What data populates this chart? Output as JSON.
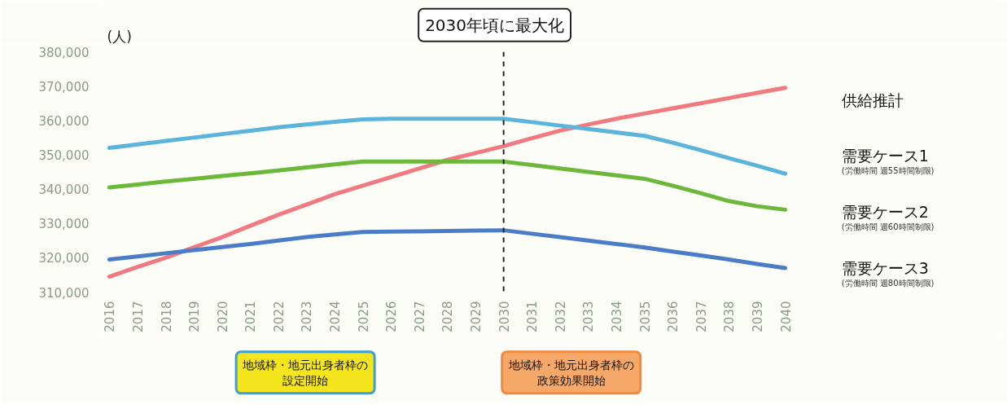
{
  "chart_data": {
    "type": "line",
    "ylabel": "(人)",
    "categories": [
      "2016",
      "2017",
      "2018",
      "2019",
      "2020",
      "2021",
      "2022",
      "2023",
      "2024",
      "2025",
      "2026",
      "2027",
      "2028",
      "2029",
      "2030",
      "2031",
      "2032",
      "2033",
      "2034",
      "2035",
      "2036",
      "2037",
      "2038",
      "2039",
      "2040"
    ],
    "series": [
      {
        "name": "供給推計",
        "color": "#f07a80",
        "values": [
          314500,
          317300,
          320000,
          323000,
          326000,
          329300,
          332500,
          335500,
          338500,
          341000,
          343500,
          346000,
          348500,
          350500,
          352500,
          354800,
          357000,
          358800,
          360500,
          362000,
          363500,
          365000,
          366500,
          368000,
          369500
        ]
      },
      {
        "name": "需要ケース1\n(労働時間 週55時間制限)",
        "color": "#5ab4dc",
        "values": [
          352000,
          353000,
          354000,
          355000,
          356000,
          357000,
          358000,
          358800,
          359600,
          360300,
          360500,
          360500,
          360500,
          360500,
          360500,
          359500,
          358500,
          357500,
          356500,
          355500,
          353500,
          351300,
          349000,
          346800,
          344500
        ]
      },
      {
        "name": "需要ケース2\n(労働時間 週60時間制限)",
        "color": "#6cb83a",
        "values": [
          340500,
          341300,
          342200,
          343000,
          343800,
          344600,
          345400,
          346300,
          347200,
          348000,
          348000,
          348000,
          348000,
          348000,
          348000,
          347000,
          346000,
          345000,
          344000,
          343000,
          341000,
          338800,
          336500,
          335000,
          334000
        ]
      },
      {
        "name": "需要ケース3\n(労働時間 週80時間制限)",
        "color": "#4a7cc8",
        "values": [
          319500,
          320400,
          321300,
          322200,
          323100,
          324000,
          325000,
          326000,
          326800,
          327500,
          327600,
          327700,
          327800,
          327900,
          328000,
          327000,
          326000,
          325000,
          324000,
          323000,
          321800,
          320700,
          319500,
          318200,
          317000
        ]
      }
    ],
    "ylim": [
      310000,
      380000
    ],
    "yticks": [
      {
        "value": 310000,
        "label": "310,000"
      },
      {
        "value": 320000,
        "label": "320,000"
      },
      {
        "value": 330000,
        "label": "330,000"
      },
      {
        "value": 340000,
        "label": "340,000"
      },
      {
        "value": 350000,
        "label": "350,000"
      },
      {
        "value": 360000,
        "label": "360,000"
      },
      {
        "value": 370000,
        "label": "370,000"
      },
      {
        "value": 380000,
        "label": "380,000"
      }
    ],
    "ref_lines": [
      {
        "axis": "x",
        "value": "2030",
        "color": "#222222",
        "line_style": "dashed"
      }
    ],
    "annotations": [
      "2030年頃に最大化",
      "地域枠・地元出身者枠の設定開始",
      "地域枠・地元出身者枠の政策効果開始"
    ],
    "legend": "right",
    "grid": false,
    "line_style": "solid",
    "marker": "none"
  }
}
